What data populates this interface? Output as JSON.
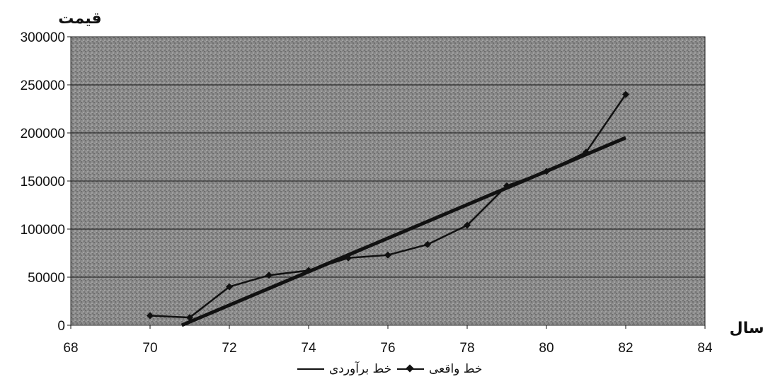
{
  "chart_data": {
    "type": "line",
    "ylabel": "قیمت",
    "xlabel": "سال",
    "xlim": [
      68,
      84
    ],
    "ylim": [
      0,
      300000
    ],
    "x_ticks": [
      "68",
      "70",
      "72",
      "74",
      "76",
      "78",
      "80",
      "82",
      "84"
    ],
    "y_ticks": [
      "0",
      "50000",
      "100000",
      "150000",
      "200000",
      "250000",
      "300000"
    ],
    "grid": true,
    "legend_position": "bottom",
    "series": [
      {
        "name": "خط واقعی",
        "marker": "diamond",
        "x": [
          70,
          71,
          72,
          73,
          74,
          75,
          76,
          77,
          78,
          79,
          80,
          81,
          82
        ],
        "y": [
          10000,
          8000,
          40000,
          52000,
          57000,
          70000,
          73000,
          84000,
          104000,
          145000,
          160000,
          180000,
          240000
        ]
      },
      {
        "name": "خط برآوردی",
        "marker": "none",
        "x": [
          70.8,
          82
        ],
        "y": [
          0,
          195000
        ]
      }
    ]
  }
}
